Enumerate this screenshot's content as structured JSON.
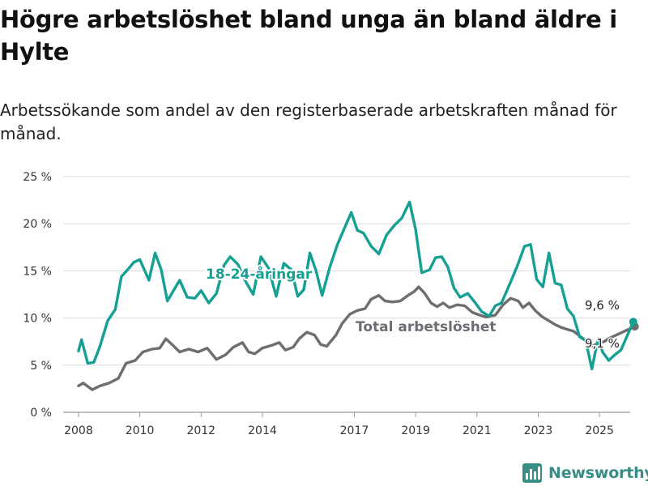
{
  "header": {
    "title": "Högre arbetslöshet bland unga än bland äldre i Hylte",
    "subtitle": "Arbetssökande som andel av den registerbaserade arbetskraften månad för månad."
  },
  "brand": {
    "name": "Newsworthy",
    "color": "#3a8c86",
    "icon": "bar-chart-logo-icon"
  },
  "chart_data": {
    "type": "line",
    "ylim": [
      0,
      25
    ],
    "xlim": [
      2007.5,
      2026.0
    ],
    "grid": true,
    "legend": "inline labels",
    "y_ticks": [
      0,
      5,
      10,
      15,
      20,
      25
    ],
    "y_tick_labels": [
      "0 %",
      "5 %",
      "10 %",
      "15 %",
      "20 %",
      "25 %"
    ],
    "x_ticks": [
      2008,
      2010,
      2012,
      2014,
      2017,
      2019,
      2021,
      2023,
      2025
    ],
    "x_tick_labels": [
      "2008",
      "2010",
      "2012",
      "2014",
      "2017",
      "2019",
      "2021",
      "2023",
      "2025"
    ],
    "series": [
      {
        "name": "Total arbetslöshet",
        "color": "#6d6d72",
        "end_label": "9,1 %",
        "points": [
          [
            2008.0,
            2.8
          ],
          [
            2008.15,
            3.1
          ],
          [
            2008.45,
            2.4
          ],
          [
            2008.7,
            2.8
          ],
          [
            2009.0,
            3.1
          ],
          [
            2009.3,
            3.6
          ],
          [
            2009.55,
            5.2
          ],
          [
            2009.85,
            5.5
          ],
          [
            2010.1,
            6.4
          ],
          [
            2010.4,
            6.7
          ],
          [
            2010.65,
            6.8
          ],
          [
            2010.85,
            7.8
          ],
          [
            2011.05,
            7.2
          ],
          [
            2011.3,
            6.4
          ],
          [
            2011.6,
            6.7
          ],
          [
            2011.9,
            6.4
          ],
          [
            2012.2,
            6.8
          ],
          [
            2012.5,
            5.6
          ],
          [
            2012.8,
            6.1
          ],
          [
            2013.05,
            6.9
          ],
          [
            2013.35,
            7.4
          ],
          [
            2013.55,
            6.4
          ],
          [
            2013.75,
            6.2
          ],
          [
            2014.0,
            6.8
          ],
          [
            2014.3,
            7.1
          ],
          [
            2014.55,
            7.4
          ],
          [
            2014.75,
            6.6
          ],
          [
            2015.0,
            6.9
          ],
          [
            2015.2,
            7.8
          ],
          [
            2015.45,
            8.5
          ],
          [
            2015.7,
            8.2
          ],
          [
            2015.9,
            7.2
          ],
          [
            2016.1,
            7.0
          ],
          [
            2016.4,
            8.2
          ],
          [
            2016.6,
            9.4
          ],
          [
            2016.85,
            10.4
          ],
          [
            2017.1,
            10.8
          ],
          [
            2017.35,
            11.0
          ],
          [
            2017.55,
            12.0
          ],
          [
            2017.8,
            12.4
          ],
          [
            2018.0,
            11.8
          ],
          [
            2018.25,
            11.7
          ],
          [
            2018.5,
            11.8
          ],
          [
            2018.75,
            12.4
          ],
          [
            2018.95,
            12.8
          ],
          [
            2019.1,
            13.3
          ],
          [
            2019.3,
            12.6
          ],
          [
            2019.5,
            11.6
          ],
          [
            2019.7,
            11.2
          ],
          [
            2019.9,
            11.6
          ],
          [
            2020.1,
            11.1
          ],
          [
            2020.35,
            11.4
          ],
          [
            2020.6,
            11.3
          ],
          [
            2020.85,
            10.6
          ],
          [
            2021.1,
            10.3
          ],
          [
            2021.3,
            10.1
          ],
          [
            2021.6,
            10.3
          ],
          [
            2021.85,
            11.4
          ],
          [
            2022.1,
            12.1
          ],
          [
            2022.35,
            11.8
          ],
          [
            2022.5,
            11.1
          ],
          [
            2022.7,
            11.6
          ],
          [
            2022.9,
            10.8
          ],
          [
            2023.1,
            10.2
          ],
          [
            2023.3,
            9.8
          ],
          [
            2023.55,
            9.3
          ],
          [
            2023.75,
            9.0
          ],
          [
            2023.95,
            8.8
          ],
          [
            2024.15,
            8.6
          ],
          [
            2024.35,
            8.1
          ],
          [
            2024.55,
            7.6
          ],
          [
            2024.75,
            7.0
          ],
          [
            2024.95,
            7.3
          ],
          [
            2025.15,
            7.5
          ],
          [
            2025.35,
            7.9
          ],
          [
            2025.55,
            8.2
          ],
          [
            2025.75,
            8.5
          ],
          [
            2025.95,
            8.8
          ],
          [
            2026.15,
            9.1
          ]
        ]
      },
      {
        "name": "18-24-åringar",
        "color": "#15a093",
        "end_label": "9,6 %",
        "points": [
          [
            2008.0,
            6.5
          ],
          [
            2008.1,
            7.7
          ],
          [
            2008.3,
            5.2
          ],
          [
            2008.5,
            5.3
          ],
          [
            2008.7,
            7.0
          ],
          [
            2008.95,
            9.7
          ],
          [
            2009.2,
            10.9
          ],
          [
            2009.4,
            14.4
          ],
          [
            2009.6,
            15.1
          ],
          [
            2009.8,
            15.9
          ],
          [
            2010.0,
            16.2
          ],
          [
            2010.3,
            14.0
          ],
          [
            2010.5,
            16.9
          ],
          [
            2010.7,
            15.1
          ],
          [
            2010.9,
            11.8
          ],
          [
            2011.1,
            12.9
          ],
          [
            2011.3,
            14.0
          ],
          [
            2011.55,
            12.2
          ],
          [
            2011.8,
            12.1
          ],
          [
            2012.0,
            12.9
          ],
          [
            2012.25,
            11.6
          ],
          [
            2012.5,
            12.6
          ],
          [
            2012.75,
            15.6
          ],
          [
            2012.95,
            16.5
          ],
          [
            2013.2,
            15.7
          ],
          [
            2013.45,
            13.9
          ],
          [
            2013.7,
            12.5
          ],
          [
            2013.95,
            16.5
          ],
          [
            2014.2,
            15.3
          ],
          [
            2014.45,
            12.3
          ],
          [
            2014.7,
            15.8
          ],
          [
            2014.95,
            15.1
          ],
          [
            2015.15,
            12.3
          ],
          [
            2015.35,
            13.0
          ],
          [
            2015.55,
            16.9
          ],
          [
            2015.75,
            15.0
          ],
          [
            2015.95,
            12.4
          ],
          [
            2016.2,
            15.4
          ],
          [
            2016.45,
            17.8
          ],
          [
            2016.7,
            19.7
          ],
          [
            2016.9,
            21.2
          ],
          [
            2017.1,
            19.3
          ],
          [
            2017.3,
            19.0
          ],
          [
            2017.55,
            17.6
          ],
          [
            2017.8,
            16.8
          ],
          [
            2018.05,
            18.8
          ],
          [
            2018.3,
            19.8
          ],
          [
            2018.55,
            20.6
          ],
          [
            2018.8,
            22.3
          ],
          [
            2019.0,
            19.4
          ],
          [
            2019.2,
            14.8
          ],
          [
            2019.45,
            15.1
          ],
          [
            2019.65,
            16.4
          ],
          [
            2019.85,
            16.5
          ],
          [
            2020.05,
            15.4
          ],
          [
            2020.25,
            13.2
          ],
          [
            2020.45,
            12.2
          ],
          [
            2020.7,
            12.6
          ],
          [
            2020.95,
            11.6
          ],
          [
            2021.15,
            10.7
          ],
          [
            2021.4,
            10.2
          ],
          [
            2021.6,
            11.3
          ],
          [
            2021.8,
            11.6
          ],
          [
            2021.95,
            12.7
          ],
          [
            2022.15,
            14.2
          ],
          [
            2022.35,
            15.8
          ],
          [
            2022.55,
            17.6
          ],
          [
            2022.75,
            17.8
          ],
          [
            2022.95,
            14.1
          ],
          [
            2023.15,
            13.3
          ],
          [
            2023.35,
            16.9
          ],
          [
            2023.55,
            13.7
          ],
          [
            2023.75,
            13.5
          ],
          [
            2023.95,
            11.0
          ],
          [
            2024.15,
            10.2
          ],
          [
            2024.35,
            8.0
          ],
          [
            2024.55,
            7.6
          ],
          [
            2024.75,
            4.6
          ],
          [
            2024.95,
            7.8
          ],
          [
            2025.1,
            6.4
          ],
          [
            2025.3,
            5.5
          ],
          [
            2025.5,
            6.1
          ],
          [
            2025.7,
            6.6
          ],
          [
            2025.9,
            8.1
          ],
          [
            2026.1,
            9.6
          ]
        ]
      }
    ]
  }
}
